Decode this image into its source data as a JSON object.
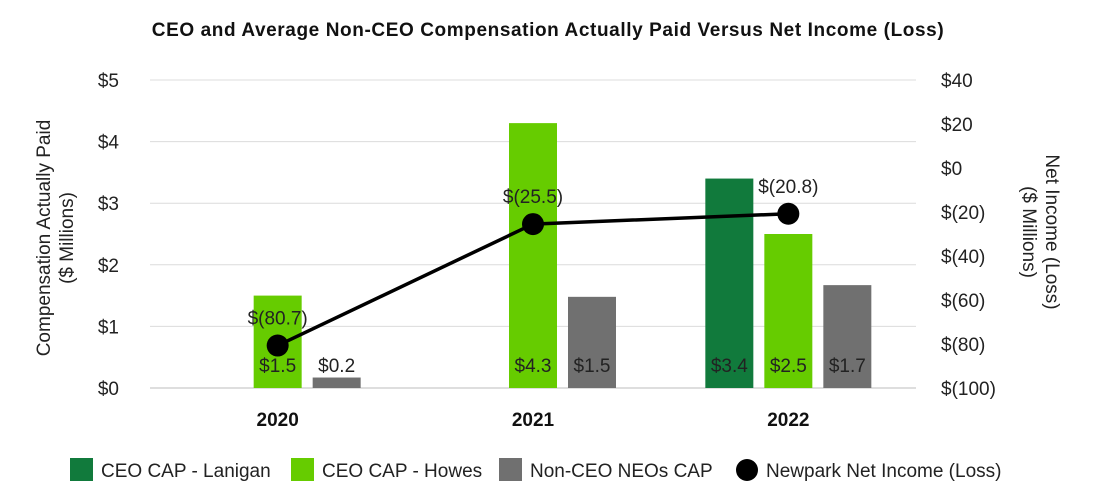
{
  "chart_data": {
    "type": "bar",
    "title": "CEO and Average Non-CEO Compensation Actually Paid Versus Net Income (Loss)",
    "categories": [
      "2020",
      "2021",
      "2022"
    ],
    "ylabel": [
      "Compensation Actually Paid",
      "($ Millions)"
    ],
    "y2label": [
      "Net Income (Loss)",
      "($ Millions)"
    ],
    "ylim": [
      0,
      5
    ],
    "y2lim": [
      -100,
      40
    ],
    "yticks": [
      0,
      1,
      2,
      3,
      4,
      5
    ],
    "yticklabels": [
      "$0",
      "$1",
      "$2",
      "$3",
      "$4",
      "$5"
    ],
    "y2ticks": [
      -100,
      -80,
      -60,
      -40,
      -20,
      0,
      20,
      40
    ],
    "y2ticklabels": [
      "$(100)",
      "$(80)",
      "$(60)",
      "$(40)",
      "$(20)",
      "$0",
      "$20",
      "$40"
    ],
    "series": [
      {
        "name": "CEO CAP - Lanigan",
        "color": "#117a3c",
        "values": [
          null,
          null,
          3.4
        ],
        "labels": [
          "",
          "",
          "$3.4"
        ]
      },
      {
        "name": "CEO CAP - Howes",
        "color": "#66cc00",
        "values": [
          1.5,
          4.3,
          2.5
        ],
        "labels": [
          "$1.5",
          "$4.3",
          "$2.5"
        ]
      },
      {
        "name": "Non-CEO NEOs CAP",
        "color": "#707070",
        "values": [
          0.17,
          1.48,
          1.67
        ],
        "labels": [
          "$0.2",
          "$1.5",
          "$1.7"
        ]
      }
    ],
    "line": {
      "name": "Newpark Net Income (Loss)",
      "axis": "secondary",
      "color": "#000000",
      "values": [
        -80.7,
        -25.5,
        -20.8
      ],
      "labels": [
        "$(80.7)",
        "$(25.5)",
        "$(20.8)"
      ]
    },
    "legend_position": "bottom",
    "grid": "horizontal"
  }
}
